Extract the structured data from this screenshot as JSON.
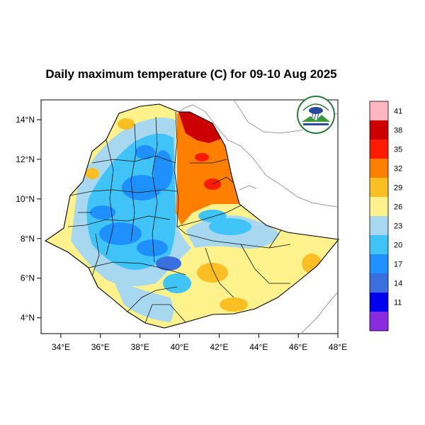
{
  "title": "Daily maximum temperature (C) for 09-10 Aug 2025",
  "map": {
    "x_range": [
      33,
      48
    ],
    "y_range": [
      3.2,
      15
    ],
    "x_ticks": [
      {
        "value": 34,
        "label": "34°E"
      },
      {
        "value": 36,
        "label": "36°E"
      },
      {
        "value": 38,
        "label": "38°E"
      },
      {
        "value": 40,
        "label": "40°E"
      },
      {
        "value": 42,
        "label": "42°E"
      },
      {
        "value": 44,
        "label": "44°E"
      },
      {
        "value": 46,
        "label": "46°E"
      },
      {
        "value": 48,
        "label": "48°E"
      }
    ],
    "y_ticks": [
      {
        "value": 4,
        "label": "4°N"
      },
      {
        "value": 6,
        "label": "6°N"
      },
      {
        "value": 8,
        "label": "8°N"
      },
      {
        "value": 10,
        "label": "10°N"
      },
      {
        "value": 12,
        "label": "12°N"
      },
      {
        "value": 14,
        "label": "14°N"
      }
    ]
  },
  "colorbar": {
    "colors": [
      "#ffb6c1",
      "#cc0000",
      "#ff1a00",
      "#ff7f00",
      "#fbbf24",
      "#fdf28b",
      "#a8d8f0",
      "#40c4f8",
      "#1e90ff",
      "#3a6fe0",
      "#0000ee",
      "#8a2be2"
    ],
    "labels": [
      "41",
      "38",
      "35",
      "32",
      "29",
      "26",
      "23",
      "20",
      "17",
      "14",
      "11"
    ]
  },
  "logo": {
    "colors": {
      "ring": "#2a7a3a",
      "sky": "#2a4a9a",
      "land": "#3a9a3a"
    }
  }
}
